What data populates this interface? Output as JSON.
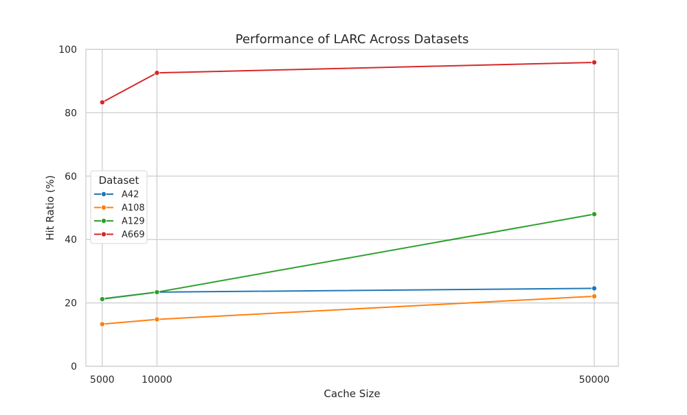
{
  "chart_data": {
    "type": "line",
    "title": "Performance of LARC Across Datasets",
    "xlabel": "Cache Size",
    "ylabel": "Hit Ratio (%)",
    "x": [
      5000,
      10000,
      50000
    ],
    "x_tick_labels": [
      "5000",
      "10000",
      "50000"
    ],
    "xlim": [
      3500,
      52200
    ],
    "ylim": [
      0,
      100
    ],
    "y_ticks": [
      0,
      20,
      40,
      60,
      80,
      100
    ],
    "y_tick_labels": [
      "0",
      "20",
      "40",
      "60",
      "80",
      "100"
    ],
    "grid": true,
    "legend": {
      "title": "Dataset",
      "placement": "center-left"
    },
    "series": [
      {
        "name": "A42",
        "color": "#1f77b4",
        "values": [
          21.3,
          23.4,
          24.6
        ]
      },
      {
        "name": "A108",
        "color": "#ff7f0e",
        "values": [
          13.3,
          14.8,
          22.1
        ]
      },
      {
        "name": "A129",
        "color": "#2ca02c",
        "values": [
          21.2,
          23.4,
          48.0
        ]
      },
      {
        "name": "A669",
        "color": "#d62728",
        "values": [
          83.3,
          92.6,
          95.9
        ]
      }
    ]
  }
}
